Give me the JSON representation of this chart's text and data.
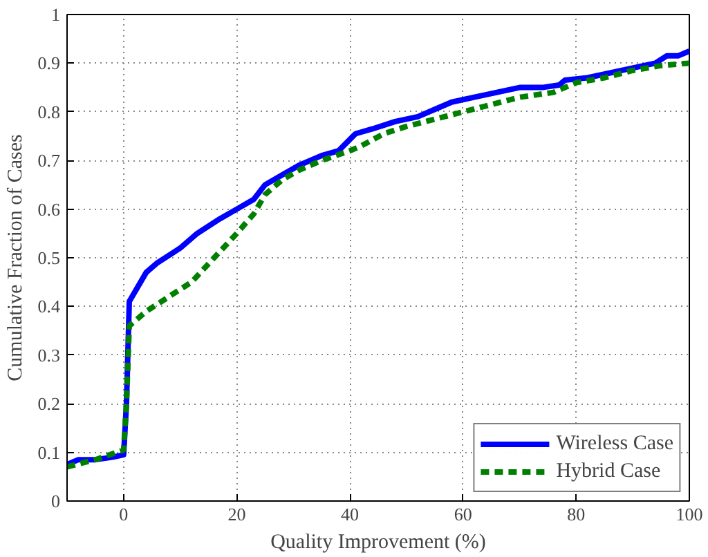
{
  "chart_data": {
    "type": "line",
    "xlabel": "Quality Improvement (%)",
    "ylabel": "Cumulative Fraction of Cases",
    "xlim": [
      -10,
      100
    ],
    "xticks": [
      0,
      20,
      40,
      60,
      80,
      100
    ],
    "ylim": [
      0,
      1
    ],
    "yticks": [
      0,
      0.1,
      0.2,
      0.3,
      0.4,
      0.5,
      0.6,
      0.7,
      0.8,
      0.9,
      1
    ],
    "grid": true,
    "legend": "bottom right",
    "marker": "none",
    "series": [
      {
        "name": "Wireless Case",
        "color": "#0000ff",
        "line_style": "solid",
        "x": [
          -10,
          -8,
          -5,
          -2,
          0,
          0.5,
          1,
          4,
          6,
          10,
          13,
          17,
          20,
          23,
          25,
          28,
          31,
          35,
          38,
          41,
          44,
          48,
          52,
          55,
          58,
          62,
          66,
          70,
          74,
          77,
          78,
          82,
          86,
          90,
          94,
          96,
          98,
          100
        ],
        "values": [
          0.075,
          0.085,
          0.085,
          0.09,
          0.095,
          0.2,
          0.41,
          0.47,
          0.49,
          0.52,
          0.55,
          0.58,
          0.6,
          0.62,
          0.65,
          0.67,
          0.69,
          0.71,
          0.72,
          0.755,
          0.765,
          0.78,
          0.79,
          0.805,
          0.82,
          0.83,
          0.84,
          0.85,
          0.85,
          0.855,
          0.865,
          0.87,
          0.88,
          0.89,
          0.9,
          0.915,
          0.915,
          0.925
        ]
      },
      {
        "name": "Hybrid Case",
        "color": "#008000",
        "line_style": "dashed",
        "x": [
          -10,
          -5,
          0,
          0.5,
          1,
          4,
          8,
          12,
          16,
          20,
          23,
          25,
          28,
          31,
          35,
          40,
          42,
          46,
          50,
          55,
          60,
          65,
          70,
          76,
          80,
          85,
          90,
          95,
          100
        ],
        "values": [
          0.07,
          0.085,
          0.105,
          0.2,
          0.36,
          0.39,
          0.42,
          0.45,
          0.5,
          0.55,
          0.59,
          0.63,
          0.66,
          0.68,
          0.7,
          0.72,
          0.73,
          0.755,
          0.77,
          0.785,
          0.8,
          0.815,
          0.83,
          0.84,
          0.86,
          0.87,
          0.885,
          0.895,
          0.9
        ]
      }
    ]
  }
}
